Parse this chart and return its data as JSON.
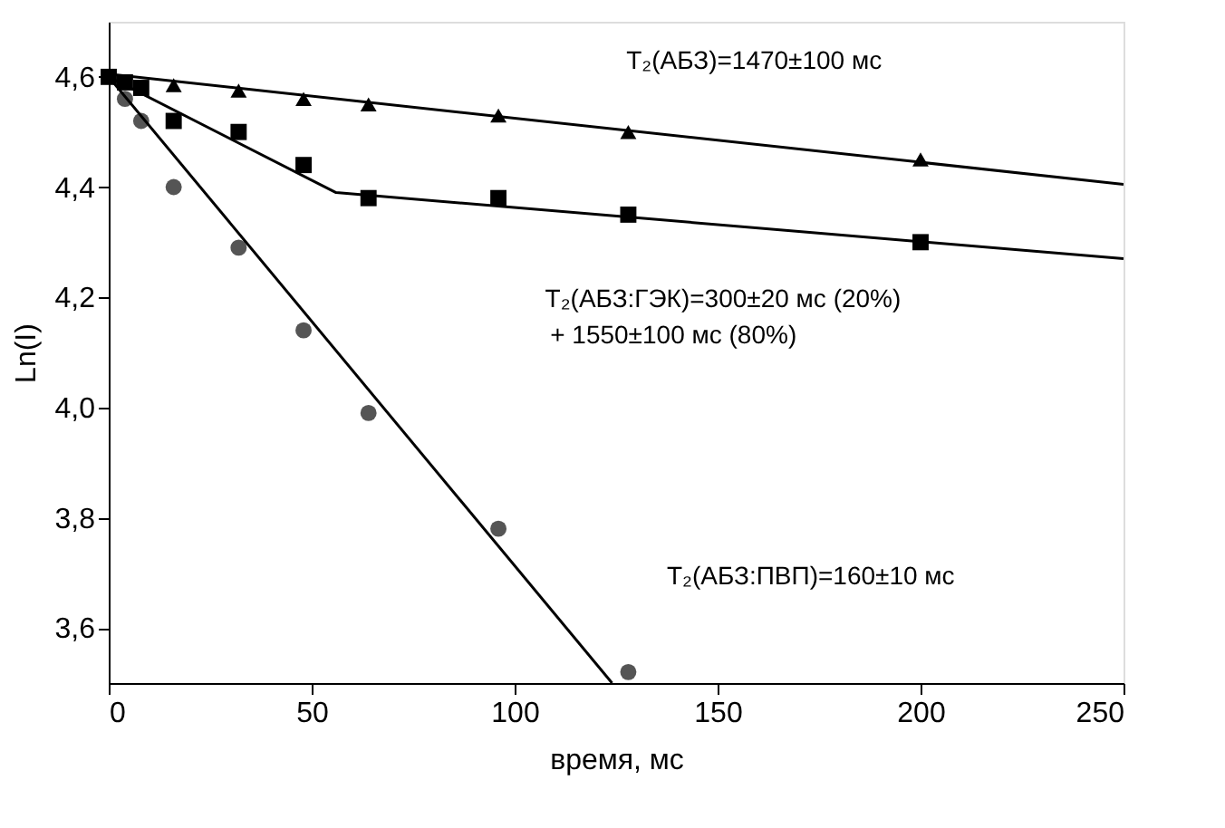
{
  "chart_data": {
    "type": "scatter",
    "xlabel": "время, мс",
    "ylabel": "Ln(I)",
    "xlim": [
      0,
      250
    ],
    "xticks": [
      0,
      50,
      100,
      150,
      200,
      250
    ],
    "ylim": [
      3.5,
      4.7
    ],
    "yticks": [
      {
        "value": 3.6,
        "label": "3,6"
      },
      {
        "value": 3.8,
        "label": "3,8"
      },
      {
        "value": 4.0,
        "label": "4,0"
      },
      {
        "value": 4.2,
        "label": "4,2"
      },
      {
        "value": 4.4,
        "label": "4,4"
      },
      {
        "value": 4.6,
        "label": "4,6"
      }
    ],
    "grid": false,
    "series": [
      {
        "marker": "triangle",
        "color": "#000000",
        "x": [
          16,
          32,
          48,
          64,
          96,
          128,
          200
        ],
        "values": [
          4.585,
          4.575,
          4.56,
          4.55,
          4.53,
          4.5,
          4.45
        ]
      },
      {
        "marker": "square",
        "color": "#000000",
        "x": [
          0,
          4,
          8,
          16,
          32,
          48,
          64,
          96,
          128,
          200
        ],
        "values": [
          4.6,
          4.59,
          4.58,
          4.52,
          4.5,
          4.44,
          4.38,
          4.38,
          4.35,
          4.3
        ]
      },
      {
        "marker": "circle",
        "color": "#555555",
        "x": [
          4,
          8,
          16,
          32,
          48,
          64,
          96,
          128
        ],
        "values": [
          4.56,
          4.52,
          4.4,
          4.29,
          4.14,
          3.99,
          3.78,
          3.52
        ]
      },
      {
        "type": "line",
        "color": "#000000",
        "x": [
          0,
          250
        ],
        "values": [
          4.605,
          4.405
        ]
      },
      {
        "type": "line",
        "color": "#000000",
        "x": [
          0,
          56,
          250
        ],
        "values": [
          4.6,
          4.39,
          4.27
        ]
      },
      {
        "type": "line",
        "color": "#000000",
        "x": [
          0,
          124
        ],
        "values": [
          4.6,
          3.5
        ]
      }
    ],
    "annotations": [
      "T₂(АБЗ)=1470±100 мс",
      "T₂(АБЗ:ГЭК)=300±20 мс (20%)",
      "+ 1550±100 мс (80%)",
      "T₂(АБЗ:ПВП)=160±10 мс"
    ]
  }
}
